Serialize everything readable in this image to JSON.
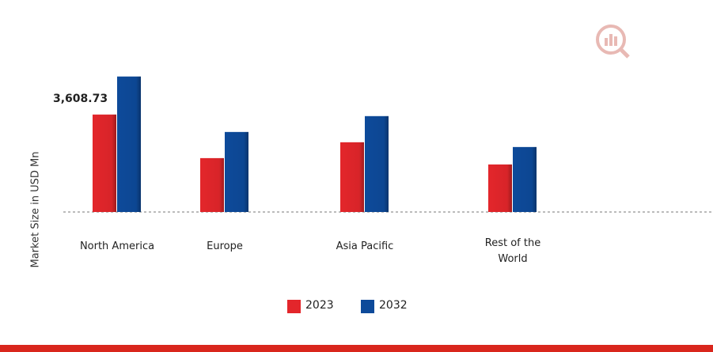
{
  "chart_data": {
    "type": "bar",
    "y_label": "Market Size in USD Mn",
    "categories": [
      "North America",
      "Europe",
      "Asia Pacific",
      "Rest of the World"
    ],
    "series": [
      {
        "name": "2023",
        "color": "#e3262b",
        "values": [
          3608.73,
          1995,
          2582,
          1760
        ],
        "value_labels": [
          "3,608.73",
          null,
          null,
          null
        ]
      },
      {
        "name": "2032",
        "color": "#0d4a9a",
        "values": [
          5017,
          2963,
          3550,
          2406
        ]
      }
    ],
    "ylim": [
      0,
      5800
    ]
  }
}
